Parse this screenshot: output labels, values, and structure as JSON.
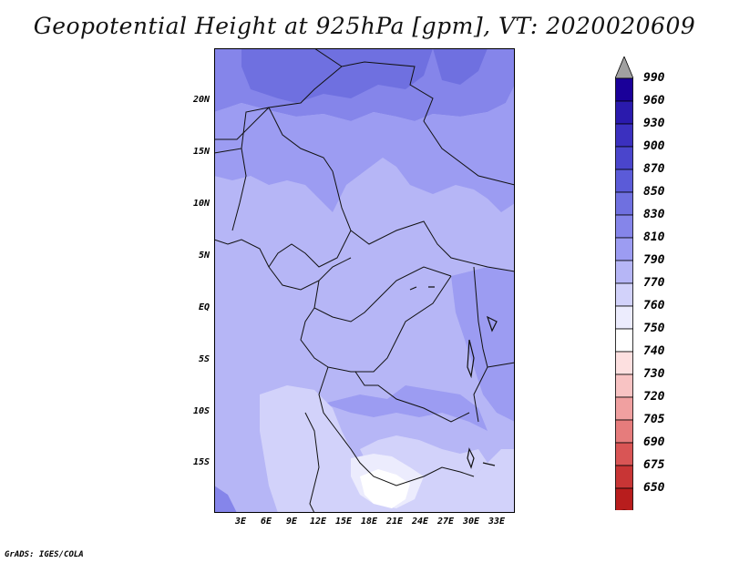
{
  "title": "Geopotential Height at 925hPa [gpm], VT: 2020020609",
  "lat_labels": [
    "20N",
    "15N",
    "10N",
    "5N",
    "EQ",
    "5S",
    "10S",
    "15S"
  ],
  "lon_labels": [
    "3E",
    "6E",
    "9E",
    "12E",
    "15E",
    "18E",
    "21E",
    "24E",
    "27E",
    "30E",
    "33E"
  ],
  "colorbar": {
    "levels": [
      "990",
      "960",
      "930",
      "900",
      "870",
      "850",
      "830",
      "810",
      "790",
      "770",
      "760",
      "750",
      "740",
      "730",
      "720",
      "705",
      "690",
      "675",
      "650"
    ],
    "colors": [
      "#1a0099",
      "#2a1aad",
      "#3b30bf",
      "#4a45cc",
      "#5b5bd8",
      "#6f70e0",
      "#8585ea",
      "#9c9cf2",
      "#b6b6f6",
      "#d2d2fa",
      "#ececfd",
      "#ffffff",
      "#fde0e0",
      "#f8c3c3",
      "#f0a0a0",
      "#e67c7c",
      "#d95555",
      "#c83535",
      "#b81d1d",
      "#a00f0f"
    ],
    "top_arrow_color": "#a0a0a0"
  },
  "map_colors": {
    "c850": "#6f70e0",
    "c830": "#8585ea",
    "c810": "#9c9cf2",
    "c790": "#b6b6f6",
    "c770": "#d2d2fa",
    "c760": "#ececfd",
    "white": "#ffffff"
  },
  "footer": "GrADS: IGES/COLA"
}
